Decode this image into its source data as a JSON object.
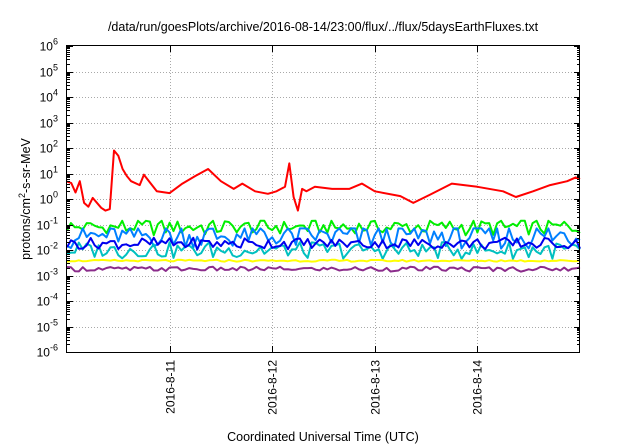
{
  "chart_data": {
    "type": "line",
    "title": "/data/run/goesPlots/archive/2016-08-14/23:00/flux/../flux/5daysEarthFluxes.txt",
    "xlabel": "Coordinated Universal Time (UTC)",
    "ylabel": "protons/cm2-s-sr-MeV",
    "ylabel_parts": [
      "protons/cm",
      "2",
      "-s-sr-MeV"
    ],
    "yscale": "log",
    "ylim": [
      1e-06,
      1000000.0
    ],
    "xlim": [
      "2016-08-10T00:00",
      "2016-08-15T00:00"
    ],
    "x_ticks": [
      "2016-8-11",
      "2016-8-12",
      "2016-8-13",
      "2016-8-14"
    ],
    "y_ticks": [
      {
        "value": 1e-06,
        "base": "10",
        "exp": "-6"
      },
      {
        "value": 1e-05,
        "base": "10",
        "exp": "-5"
      },
      {
        "value": 0.0001,
        "base": "10",
        "exp": "-4"
      },
      {
        "value": 0.001,
        "base": "10",
        "exp": "-3"
      },
      {
        "value": 0.01,
        "base": "10",
        "exp": "-2"
      },
      {
        "value": 0.1,
        "base": "10",
        "exp": "-1"
      },
      {
        "value": 1,
        "base": "10",
        "exp": "0"
      },
      {
        "value": 10,
        "base": "10",
        "exp": "1"
      },
      {
        "value": 100,
        "base": "10",
        "exp": "2"
      },
      {
        "value": 1000.0,
        "base": "10",
        "exp": "3"
      },
      {
        "value": 10000.0,
        "base": "10",
        "exp": "4"
      },
      {
        "value": 100000.0,
        "base": "10",
        "exp": "5"
      },
      {
        "value": 1000000.0,
        "base": "10",
        "exp": "6"
      }
    ],
    "grid": true,
    "series": [
      {
        "color": "#ff0000",
        "x": [
          "2016-08-10T00:00",
          "2016-08-10T01:00",
          "2016-08-10T02:00",
          "2016-08-10T03:00",
          "2016-08-10T04:00",
          "2016-08-10T05:00",
          "2016-08-10T06:00",
          "2016-08-10T08:00",
          "2016-08-10T09:00",
          "2016-08-10T10:00",
          "2016-08-10T11:00",
          "2016-08-10T12:00",
          "2016-08-10T13:00",
          "2016-08-10T14:00",
          "2016-08-10T15:00",
          "2016-08-10T17:00",
          "2016-08-10T18:00",
          "2016-08-10T21:00",
          "2016-08-11T00:00",
          "2016-08-11T03:00",
          "2016-08-11T06:00",
          "2016-08-11T09:00",
          "2016-08-11T12:00",
          "2016-08-11T15:00",
          "2016-08-11T17:00",
          "2016-08-11T20:00",
          "2016-08-11T23:00",
          "2016-08-12T01:00",
          "2016-08-12T03:00",
          "2016-08-12T04:00",
          "2016-08-12T05:00",
          "2016-08-12T06:00",
          "2016-08-12T07:00",
          "2016-08-12T08:00",
          "2016-08-12T10:00",
          "2016-08-12T14:00",
          "2016-08-12T18:00",
          "2016-08-12T21:00",
          "2016-08-13T00:00",
          "2016-08-13T06:00",
          "2016-08-13T09:00",
          "2016-08-13T13:00",
          "2016-08-13T18:00",
          "2016-08-14T00:00",
          "2016-08-14T06:00",
          "2016-08-14T09:00",
          "2016-08-14T13:00",
          "2016-08-14T17:00",
          "2016-08-14T21:00",
          "2016-08-14T23:00",
          "2016-08-15T00:00"
        ],
        "values": [
          4.8,
          4.2,
          1.8,
          5.0,
          0.7,
          0.5,
          1.1,
          0.45,
          0.35,
          0.4,
          80,
          50,
          15,
          8,
          5,
          3.5,
          9,
          2,
          1.7,
          4,
          8,
          15,
          5,
          2.5,
          4,
          2,
          1.6,
          2,
          3,
          25,
          1.2,
          0.35,
          2.5,
          2,
          3,
          2.5,
          2.5,
          4,
          2,
          1.3,
          0.7,
          1.5,
          4,
          3,
          2,
          1.2,
          2,
          3.5,
          5,
          7,
          6
        ]
      },
      {
        "color": "#00ee00",
        "x": [
          "2016-08-10T00:00",
          "2016-08-15T00:00"
        ],
        "values": [
          0.08,
          0.08
        ],
        "range": [
          0.03,
          0.14
        ]
      },
      {
        "color": "#0080ff",
        "x": [
          "2016-08-10T00:00",
          "2016-08-15T00:00"
        ],
        "values": [
          0.035,
          0.035
        ],
        "range": [
          0.006,
          0.07
        ]
      },
      {
        "color": "#00c0c0",
        "x": [
          "2016-08-10T00:00",
          "2016-08-15T00:00"
        ],
        "values": [
          0.01,
          0.01
        ],
        "range": [
          0.004,
          0.02
        ]
      },
      {
        "color": "#0000ee",
        "x": [
          "2016-08-10T00:00",
          "2016-08-15T00:00"
        ],
        "values": [
          0.018,
          0.018
        ],
        "range": [
          0.01,
          0.03
        ]
      },
      {
        "color": "#ffff00",
        "x": [
          "2016-08-10T00:00",
          "2016-08-15T00:00"
        ],
        "values": [
          0.0038,
          0.0038
        ],
        "range": [
          0.0035,
          0.0042
        ]
      },
      {
        "color": "#8b2c8b",
        "x": [
          "2016-08-10T00:00",
          "2016-08-15T00:00"
        ],
        "values": [
          0.0018,
          0.0018
        ],
        "range": [
          0.0014,
          0.0022
        ]
      }
    ]
  }
}
